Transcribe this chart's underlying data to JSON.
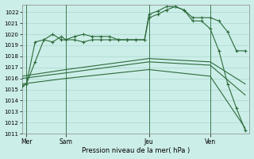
{
  "title": "Pression niveau de la mer( hPa )",
  "background_color": "#cceee8",
  "grid_color": "#aad8d0",
  "line_color": "#2d6b3c",
  "xlim": [
    0,
    52
  ],
  "ylim": [
    1011,
    1022.7
  ],
  "yticks": [
    1011,
    1012,
    1013,
    1014,
    1015,
    1016,
    1017,
    1018,
    1019,
    1020,
    1021,
    1022
  ],
  "xtick_labels": [
    "Mer",
    "Sam",
    "Jeu",
    "Ven"
  ],
  "xtick_positions": [
    1,
    10,
    29,
    43
  ],
  "vlines": [
    1,
    10,
    29,
    43
  ],
  "series": [
    {
      "x": [
        0,
        1,
        3,
        5,
        7,
        9,
        10,
        12,
        14,
        16,
        18,
        20,
        22,
        24,
        26,
        28,
        29,
        31,
        33,
        35,
        37,
        39,
        41,
        43,
        45,
        47,
        49,
        51
      ],
      "y": [
        1015.3,
        1015.5,
        1019.3,
        1019.5,
        1019.3,
        1019.8,
        1019.5,
        1019.8,
        1020.0,
        1019.8,
        1019.8,
        1019.8,
        1019.5,
        1019.5,
        1019.5,
        1019.5,
        1021.5,
        1021.8,
        1022.2,
        1022.5,
        1022.2,
        1021.5,
        1021.5,
        1021.5,
        1021.2,
        1020.2,
        1018.5,
        1018.5
      ],
      "marker": true
    },
    {
      "x": [
        0,
        1,
        3,
        5,
        7,
        9,
        10,
        12,
        14,
        16,
        18,
        20,
        22,
        24,
        26,
        28,
        29,
        31,
        33,
        35,
        37,
        39,
        41,
        43,
        45,
        47,
        49,
        51
      ],
      "y": [
        1015.3,
        1015.5,
        1017.5,
        1019.5,
        1020.0,
        1019.5,
        1019.5,
        1019.5,
        1019.3,
        1019.5,
        1019.5,
        1019.5,
        1019.5,
        1019.5,
        1019.5,
        1019.5,
        1021.8,
        1022.1,
        1022.5,
        1022.5,
        1022.2,
        1021.2,
        1021.2,
        1020.5,
        1018.5,
        1015.5,
        1013.3,
        1011.3
      ],
      "marker": true
    },
    {
      "x": [
        0,
        10,
        29,
        43,
        51
      ],
      "y": [
        1016.2,
        1016.8,
        1017.8,
        1017.5,
        1015.5
      ],
      "marker": false
    },
    {
      "x": [
        0,
        10,
        29,
        43,
        51
      ],
      "y": [
        1016.0,
        1016.5,
        1017.5,
        1017.2,
        1014.5
      ],
      "marker": false
    },
    {
      "x": [
        0,
        10,
        29,
        43,
        51
      ],
      "y": [
        1015.5,
        1016.0,
        1016.8,
        1016.2,
        1011.5
      ],
      "marker": false
    }
  ]
}
